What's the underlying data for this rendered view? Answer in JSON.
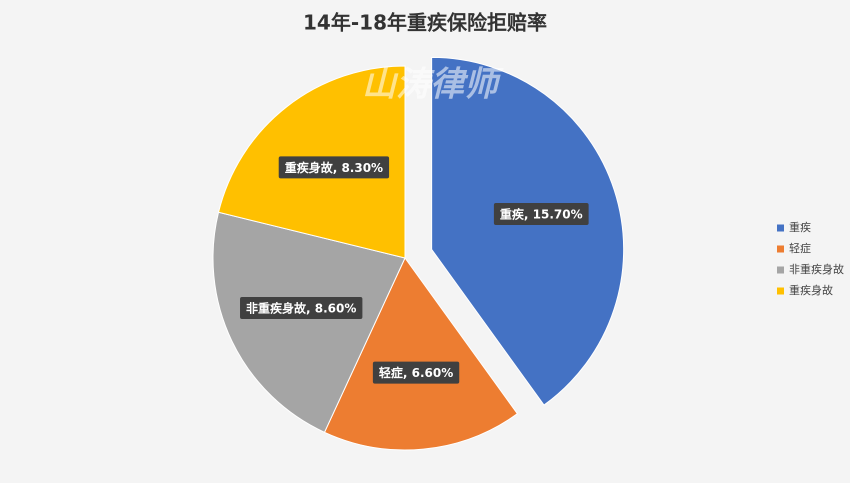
{
  "chart_data": {
    "type": "pie",
    "title": "14年-18年重疾保险拒赔率",
    "watermark": "山涛律师",
    "categories": [
      "重疾",
      "轻症",
      "非重疾身故",
      "重疾身故"
    ],
    "values": [
      15.7,
      6.6,
      8.6,
      8.3
    ],
    "value_labels": [
      "重疾, 15.70%",
      "轻症, 6.60%",
      "非重疾身故, 8.60%",
      "重疾身故, 8.30%"
    ],
    "colors": [
      "#4472c4",
      "#ed7d31",
      "#a5a5a5",
      "#ffc000"
    ],
    "exploded": [
      0
    ],
    "legend": "right"
  }
}
